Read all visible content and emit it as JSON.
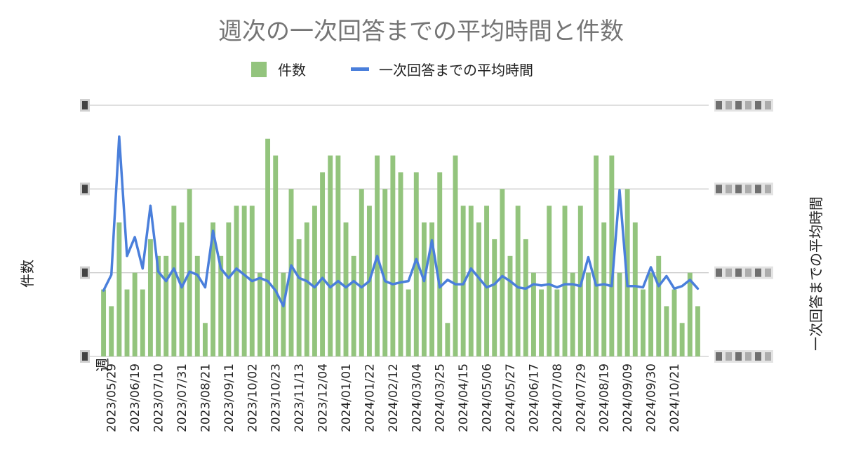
{
  "chart_data": {
    "type": "bar",
    "title": "週次の一次回答までの平均時間と件数",
    "xlabel": "週",
    "ylabel_left": "件数",
    "ylabel_right": "一次回答までの平均時間",
    "legend": {
      "position": "top",
      "entries": [
        "件数",
        "一次回答までの平均時間"
      ]
    },
    "colors": {
      "bars": "#93c47d",
      "line": "#4a7fdb",
      "grid": "#cccccc",
      "title": "#757575"
    },
    "grid": true,
    "tick_values_obscured": true,
    "ylim_left": [
      0,
      15
    ],
    "ylim_right": [
      0,
      4
    ],
    "x_tick_labels": [
      "2023/05/29",
      "2023/06/19",
      "2023/07/10",
      "2023/07/31",
      "2023/08/21",
      "2023/09/11",
      "2023/10/02",
      "2023/10/23",
      "2023/11/13",
      "2023/12/04",
      "2024/01/01",
      "2024/01/22",
      "2024/02/12",
      "2024/03/04",
      "2024/03/25",
      "2024/04/15",
      "2024/05/06",
      "2024/05/27",
      "2024/06/17",
      "2024/07/08",
      "2024/07/29",
      "2024/08/19",
      "2024/09/09",
      "2024/09/30",
      "2024/10/21"
    ],
    "series": [
      {
        "name": "件数",
        "kind": "bar",
        "axis": "left",
        "values": [
          4,
          3,
          8,
          4,
          5,
          4,
          7,
          6,
          6,
          9,
          8,
          10,
          6,
          2,
          8,
          6,
          8,
          9,
          9,
          9,
          5,
          13,
          12,
          5,
          10,
          7,
          8,
          9,
          11,
          12,
          12,
          8,
          6,
          10,
          9,
          12,
          10,
          12,
          11,
          4,
          11,
          8,
          8,
          11,
          2,
          12,
          9,
          9,
          8,
          9,
          7,
          10,
          6,
          9,
          7,
          5,
          4,
          9,
          4,
          9,
          5,
          9,
          5,
          12,
          8,
          12,
          5,
          10,
          8,
          4,
          5,
          6,
          3,
          4,
          2,
          5,
          3
        ]
      },
      {
        "name": "一次回答までの平均時間",
        "kind": "line",
        "axis": "right",
        "values": [
          1.05,
          1.3,
          3.5,
          1.6,
          1.9,
          1.4,
          2.4,
          1.35,
          1.2,
          1.4,
          1.1,
          1.35,
          1.3,
          1.1,
          2.0,
          1.4,
          1.25,
          1.4,
          1.3,
          1.2,
          1.25,
          1.2,
          1.05,
          0.8,
          1.45,
          1.25,
          1.2,
          1.1,
          1.25,
          1.1,
          1.2,
          1.1,
          1.2,
          1.1,
          1.2,
          1.6,
          1.2,
          1.15,
          1.18,
          1.2,
          1.55,
          1.2,
          1.85,
          1.1,
          1.22,
          1.15,
          1.15,
          1.4,
          1.25,
          1.1,
          1.15,
          1.28,
          1.2,
          1.1,
          1.08,
          1.15,
          1.13,
          1.15,
          1.1,
          1.15,
          1.15,
          1.12,
          1.58,
          1.13,
          1.15,
          1.12,
          2.65,
          1.12,
          1.12,
          1.1,
          1.42,
          1.12,
          1.28,
          1.08,
          1.12,
          1.22,
          1.08
        ]
      }
    ]
  }
}
